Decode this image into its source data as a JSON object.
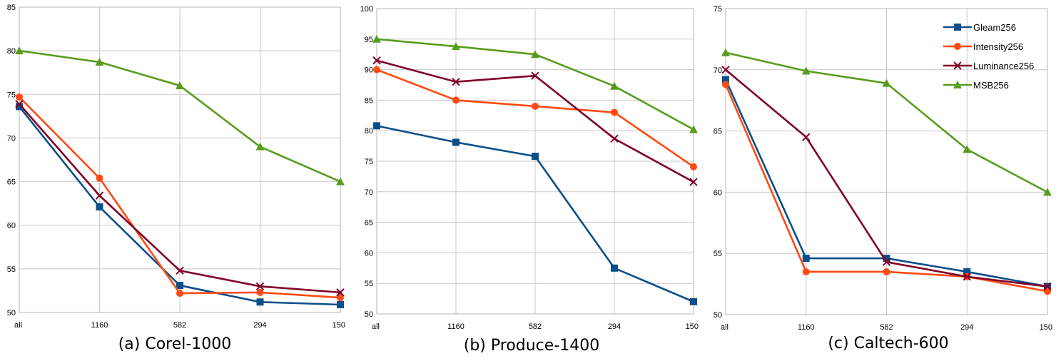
{
  "chart_data": [
    {
      "type": "line",
      "caption": "(a) Corel-1000",
      "categories": [
        "all",
        "1160",
        "582",
        "294",
        "150"
      ],
      "ylim": [
        50,
        85
      ],
      "yticks": [
        50,
        55,
        60,
        65,
        70,
        75,
        80,
        85
      ],
      "grid": true,
      "legend": "",
      "series": [
        {
          "name": "Gleam256",
          "color": "#0b4f8a",
          "marker": "square",
          "values": [
            73.6,
            62.1,
            53.1,
            51.2,
            50.9
          ]
        },
        {
          "name": "Intensity256",
          "color": "#ff4a13",
          "marker": "circle",
          "values": [
            74.7,
            65.4,
            52.2,
            52.3,
            51.7
          ]
        },
        {
          "name": "Luminance256",
          "color": "#800027",
          "marker": "x",
          "values": [
            73.9,
            63.4,
            54.8,
            53.0,
            52.3
          ]
        },
        {
          "name": "MSB256",
          "color": "#579d1c",
          "marker": "triangle",
          "values": [
            80.0,
            78.7,
            76.0,
            69.0,
            65.0
          ]
        }
      ]
    },
    {
      "type": "line",
      "caption": "(b) Produce-1400",
      "categories": [
        "all",
        "1160",
        "582",
        "294",
        "150"
      ],
      "ylim": [
        50,
        100
      ],
      "yticks": [
        50,
        55,
        60,
        65,
        70,
        75,
        80,
        85,
        90,
        95,
        100
      ],
      "grid": true,
      "legend": "",
      "series": [
        {
          "name": "Gleam256",
          "color": "#0b4f8a",
          "marker": "square",
          "values": [
            80.8,
            78.1,
            75.8,
            57.5,
            52.0
          ]
        },
        {
          "name": "Intensity256",
          "color": "#ff4a13",
          "marker": "circle",
          "values": [
            90.0,
            85.0,
            84.0,
            83.0,
            74.1
          ]
        },
        {
          "name": "Luminance256",
          "color": "#800027",
          "marker": "x",
          "values": [
            91.5,
            88.0,
            89.0,
            78.7,
            71.6
          ]
        },
        {
          "name": "MSB256",
          "color": "#579d1c",
          "marker": "triangle",
          "values": [
            95.0,
            93.8,
            92.5,
            87.3,
            80.2
          ]
        }
      ]
    },
    {
      "type": "line",
      "caption": "(c) Caltech-600",
      "categories": [
        "all",
        "1160",
        "582",
        "294",
        "150"
      ],
      "ylim": [
        50,
        75
      ],
      "yticks": [
        50,
        55,
        60,
        65,
        70,
        75
      ],
      "grid": true,
      "legend": "top-right",
      "series": [
        {
          "name": "Gleam256",
          "color": "#0b4f8a",
          "marker": "square",
          "values": [
            69.2,
            54.6,
            54.6,
            53.5,
            52.3
          ]
        },
        {
          "name": "Intensity256",
          "color": "#ff4a13",
          "marker": "circle",
          "values": [
            68.8,
            53.5,
            53.5,
            53.1,
            51.9
          ]
        },
        {
          "name": "Luminance256",
          "color": "#800027",
          "marker": "x",
          "values": [
            70.0,
            64.5,
            54.3,
            53.1,
            52.3
          ]
        },
        {
          "name": "MSB256",
          "color": "#579d1c",
          "marker": "triangle",
          "values": [
            71.4,
            69.9,
            68.9,
            63.5,
            60.0
          ]
        }
      ]
    }
  ]
}
